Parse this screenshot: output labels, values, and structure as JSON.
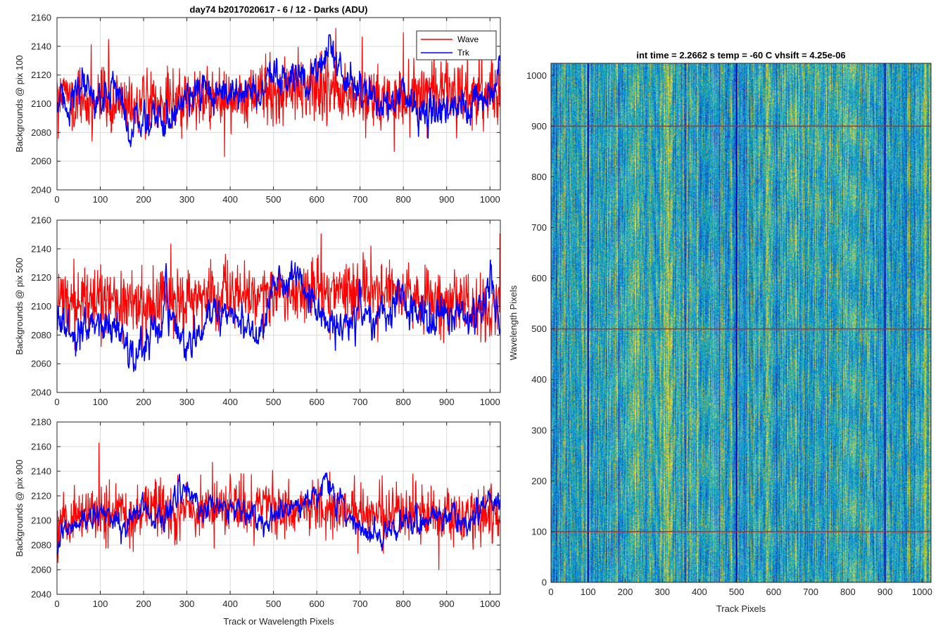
{
  "figure_title": "day74 b2017020617 - 6 / 12 - Darks (ADU)",
  "colors": {
    "wave": "#ff0000",
    "trk": "#0000ff",
    "grid": "#dcdcdc",
    "axis": "#262626"
  },
  "chart_data": [
    {
      "type": "line",
      "id": "pix100",
      "title": "day74 b2017020617 - 6 / 12 - Darks (ADU)",
      "xlabel": "",
      "ylabel": "Backgrounds @ pix 100",
      "xlim": [
        0,
        1024
      ],
      "ylim": [
        2040,
        2160
      ],
      "xticks": [
        0,
        100,
        200,
        300,
        400,
        500,
        600,
        700,
        800,
        900,
        1000
      ],
      "yticks": [
        2040,
        2060,
        2080,
        2100,
        2120,
        2140,
        2160
      ],
      "grid": true,
      "legend": "top-right",
      "series": [
        {
          "name": "Wave",
          "color": "#ff0000",
          "mean": 2103,
          "noise": 11,
          "x": [
            0,
            100,
            200,
            300,
            400,
            500,
            600,
            700,
            800,
            900,
            1024
          ],
          "trend": [
            2105,
            2100,
            2098,
            2102,
            2105,
            2108,
            2112,
            2106,
            2104,
            2106,
            2108
          ],
          "min": 2051,
          "max": 2156
        },
        {
          "name": "Trk",
          "color": "#0000ff",
          "mean": 2104,
          "noise": 5,
          "x": [
            0,
            60,
            100,
            140,
            170,
            200,
            250,
            300,
            350,
            400,
            450,
            500,
            550,
            600,
            630,
            660,
            700,
            750,
            800,
            850,
            900,
            950,
            1000,
            1024
          ],
          "trend": [
            2098,
            2108,
            2102,
            2114,
            2080,
            2090,
            2088,
            2110,
            2102,
            2110,
            2108,
            2114,
            2116,
            2124,
            2142,
            2120,
            2112,
            2098,
            2106,
            2094,
            2098,
            2092,
            2110,
            2124
          ],
          "min": 2060,
          "max": 2148
        }
      ]
    },
    {
      "type": "line",
      "id": "pix500",
      "title": "",
      "xlabel": "",
      "ylabel": "Backgrounds @ pix 500",
      "xlim": [
        0,
        1024
      ],
      "ylim": [
        2040,
        2160
      ],
      "xticks": [
        0,
        100,
        200,
        300,
        400,
        500,
        600,
        700,
        800,
        900,
        1000
      ],
      "yticks": [
        2040,
        2060,
        2080,
        2100,
        2120,
        2140,
        2160
      ],
      "grid": true,
      "legend": "",
      "series": [
        {
          "name": "Wave",
          "color": "#ff0000",
          "mean": 2105,
          "noise": 11,
          "x": [
            0,
            100,
            200,
            300,
            400,
            500,
            600,
            700,
            800,
            900,
            1024
          ],
          "trend": [
            2104,
            2102,
            2100,
            2104,
            2108,
            2110,
            2112,
            2112,
            2108,
            2102,
            2100
          ],
          "min": 2052,
          "max": 2153
        },
        {
          "name": "Trk",
          "color": "#0000ff",
          "mean": 2088,
          "noise": 5,
          "x": [
            0,
            30,
            60,
            100,
            140,
            180,
            220,
            260,
            300,
            350,
            400,
            450,
            500,
            560,
            600,
            650,
            700,
            750,
            800,
            850,
            900,
            950,
            1000,
            1024
          ],
          "trend": [
            2095,
            2080,
            2076,
            2090,
            2085,
            2062,
            2082,
            2098,
            2070,
            2090,
            2100,
            2080,
            2108,
            2122,
            2098,
            2082,
            2098,
            2088,
            2105,
            2088,
            2100,
            2090,
            2114,
            2080
          ],
          "min": 2050,
          "max": 2136
        }
      ]
    },
    {
      "type": "line",
      "id": "pix900",
      "title": "",
      "xlabel": "Track or Wavelength Pixels",
      "ylabel": "Backgrounds @ pix 900",
      "xlim": [
        0,
        1024
      ],
      "ylim": [
        2040,
        2180
      ],
      "xticks": [
        0,
        100,
        200,
        300,
        400,
        500,
        600,
        700,
        800,
        900,
        1000
      ],
      "yticks": [
        2040,
        2060,
        2080,
        2100,
        2120,
        2140,
        2160,
        2180
      ],
      "grid": true,
      "legend": "",
      "series": [
        {
          "name": "Wave",
          "color": "#ff0000",
          "mean": 2106,
          "noise": 11,
          "x": [
            0,
            100,
            200,
            300,
            400,
            500,
            600,
            700,
            800,
            900,
            1024
          ],
          "trend": [
            2104,
            2104,
            2106,
            2108,
            2110,
            2112,
            2110,
            2106,
            2106,
            2104,
            2104
          ],
          "min": 2060,
          "max": 2168
        },
        {
          "name": "Trk",
          "color": "#0000ff",
          "mean": 2106,
          "noise": 4,
          "x": [
            0,
            20,
            60,
            100,
            150,
            200,
            250,
            280,
            330,
            380,
            430,
            480,
            520,
            570,
            620,
            660,
            700,
            750,
            800,
            850,
            900,
            950,
            1000,
            1024
          ],
          "trend": [
            2072,
            2092,
            2100,
            2108,
            2095,
            2110,
            2100,
            2128,
            2110,
            2116,
            2104,
            2096,
            2110,
            2114,
            2130,
            2112,
            2094,
            2086,
            2100,
            2102,
            2104,
            2096,
            2116,
            2112
          ],
          "min": 2056,
          "max": 2142
        }
      ]
    },
    {
      "type": "heatmap",
      "id": "image",
      "title": "int time = 2.2662 s    temp = -60 C    vhsift = 4.25e-06",
      "xlabel": "Track Pixels",
      "ylabel": "Wavelength Pixels",
      "xlim": [
        0,
        1024
      ],
      "ylim": [
        0,
        1024
      ],
      "xticks": [
        0,
        100,
        200,
        300,
        400,
        500,
        600,
        700,
        800,
        900,
        1000
      ],
      "yticks": [
        0,
        100,
        200,
        300,
        400,
        500,
        600,
        700,
        800,
        900,
        1000
      ],
      "colormap": "parula",
      "value_range": [
        0.35,
        0.6
      ],
      "vertical_lines": [
        100,
        500,
        900
      ],
      "horizontal_lines": [
        100,
        500,
        900
      ]
    }
  ]
}
